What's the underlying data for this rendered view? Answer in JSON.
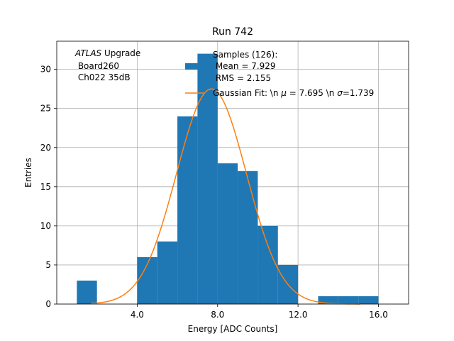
{
  "chart_data": {
    "type": "bar",
    "title": "Run 742",
    "xlabel": "Energy [ADC Counts]",
    "ylabel": "Entries",
    "xlim": [
      0.0,
      17.5
    ],
    "ylim": [
      0,
      33.6
    ],
    "xticks": [
      4.0,
      8.0,
      12.0,
      16.0
    ],
    "xtick_labels": [
      "4.0",
      "8.0",
      "12.0",
      "16.0"
    ],
    "yticks": [
      0,
      5,
      10,
      15,
      20,
      25,
      30
    ],
    "ytick_labels": [
      "0",
      "5",
      "10",
      "15",
      "20",
      "25",
      "30"
    ],
    "grid": true,
    "legend_position": "top-right",
    "histogram": {
      "name": "Samples (126):\n Mean = 7.929\n RMS = 2.155",
      "bin_edges": [
        1,
        2,
        3,
        4,
        5,
        6,
        7,
        8,
        9,
        10,
        11,
        12,
        13,
        14,
        15,
        16
      ],
      "counts": [
        3,
        0,
        0,
        6,
        8,
        24,
        32,
        18,
        17,
        10,
        5,
        0,
        1,
        1,
        1
      ]
    },
    "fit": {
      "name": "Gaussian Fit: \\n $\\mu$ = 7.695 \\n $\\sigma$=1.739",
      "mu": 7.695,
      "sigma": 1.739,
      "amplitude": 27.5,
      "x_range": [
        1.7,
        15.1
      ]
    },
    "annotation": {
      "lines": [
        "ATLAS Upgrade",
        " Board260",
        " Ch022 35dB"
      ],
      "italic_word": "ATLAS",
      "rest_of_first_line": " Upgrade"
    },
    "legend": {
      "samples_lines": [
        "Samples (126):",
        " Mean = 7.929",
        " RMS = 2.155"
      ],
      "fit_label_prefix": "Gaussian Fit: \\n ",
      "fit_label_mu_symbol": "μ",
      "fit_label_mid": " = 7.695 \\n ",
      "fit_label_sigma_symbol": "σ",
      "fit_label_suffix": "=1.739"
    },
    "colors": {
      "bars": "#1f77b4",
      "fit_line": "#ff7f0e",
      "grid": "#b0b0b0"
    }
  }
}
